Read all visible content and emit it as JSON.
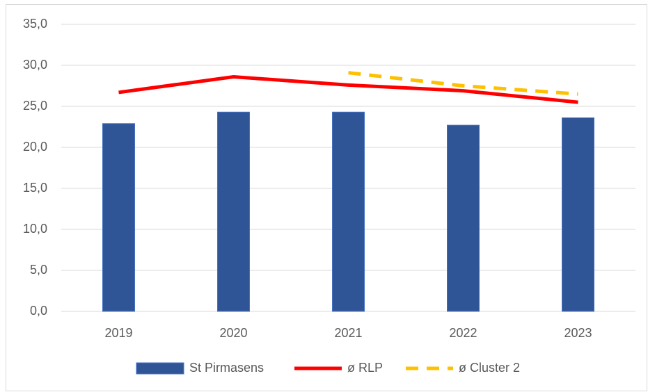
{
  "chart_data": {
    "type": "bar",
    "categories": [
      "2019",
      "2020",
      "2021",
      "2022",
      "2023"
    ],
    "series": [
      {
        "name": "St Pirmasens",
        "type": "bar",
        "color": "#2f5597",
        "values": [
          22.9,
          24.3,
          24.3,
          22.7,
          23.6
        ]
      },
      {
        "name": "ø RLP",
        "type": "line",
        "style": "solid",
        "color": "#ff0000",
        "values": [
          26.7,
          28.6,
          27.6,
          26.9,
          25.5
        ]
      },
      {
        "name": "ø Cluster 2",
        "type": "line",
        "style": "dashed",
        "color": "#ffc000",
        "values": [
          null,
          null,
          29.1,
          27.5,
          26.5
        ]
      }
    ],
    "ylim": [
      0,
      35
    ],
    "yticks": [
      {
        "value": 0,
        "label": "0,0"
      },
      {
        "value": 5,
        "label": "5,0"
      },
      {
        "value": 10,
        "label": "10,0"
      },
      {
        "value": 15,
        "label": "15,0"
      },
      {
        "value": 20,
        "label": "20,0"
      },
      {
        "value": 25,
        "label": "25,0"
      },
      {
        "value": 30,
        "label": "30,0"
      },
      {
        "value": 35,
        "label": "35,0"
      }
    ],
    "grid": true,
    "legend": "bottom"
  }
}
